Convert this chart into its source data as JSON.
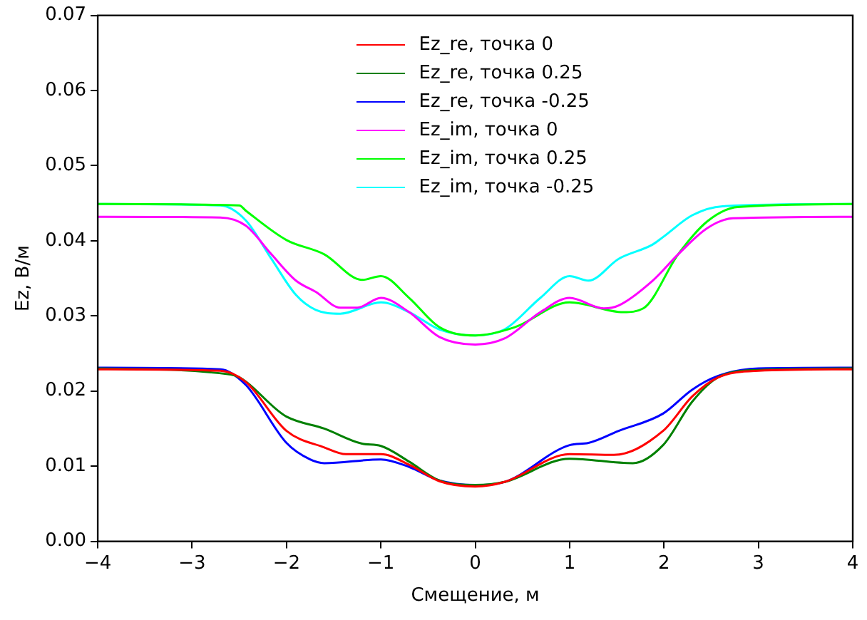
{
  "chart_data": {
    "type": "line",
    "xlabel": "Смещение, м",
    "ylabel": "Ez, В/м",
    "xlim": [
      -4,
      4
    ],
    "xticks": [
      {
        "value": -4,
        "label": "−4"
      },
      {
        "value": -3,
        "label": "−3"
      },
      {
        "value": -2,
        "label": "−2"
      },
      {
        "value": -1,
        "label": "−1"
      },
      0,
      1,
      2,
      3,
      4
    ],
    "ylim": [
      0,
      0.07
    ],
    "yticks": [
      {
        "value": 0,
        "label": "0.00"
      },
      {
        "value": 0.01,
        "label": "0.01"
      },
      {
        "value": 0.02,
        "label": "0.02"
      },
      {
        "value": 0.03,
        "label": "0.03"
      },
      {
        "value": 0.04,
        "label": "0.04"
      },
      {
        "value": 0.05,
        "label": "0.05"
      },
      {
        "value": 0.06,
        "label": "0.06"
      },
      {
        "value": 0.07,
        "label": "0.07"
      }
    ],
    "grid": false,
    "legend": "top",
    "marker": "none",
    "line_style": "solid",
    "series": [
      {
        "name": "Ez_re, точка 0",
        "color": "#ff0000",
        "x": [
          -4,
          -2.7,
          -2.43,
          -2,
          -1.6,
          -1.37,
          -1,
          -0.7,
          -0.38,
          0,
          0.31,
          1,
          1.47,
          1.99,
          2.3,
          2.57,
          3,
          4
        ],
        "values": [
          0.0229,
          0.0227,
          0.0212,
          0.0147,
          0.0125,
          0.0116,
          0.0116,
          0.0102,
          0.008,
          0.0073,
          0.0079,
          0.0116,
          0.0115,
          0.0147,
          0.0193,
          0.0218,
          0.0227,
          0.0229
        ]
      },
      {
        "name": "Ez_re, точка 0.25",
        "color": "#008000",
        "x": [
          -4,
          -2.59,
          -2,
          -1.6,
          -1.2,
          -1,
          -0.7,
          -0.38,
          0,
          0.31,
          1,
          1.67,
          1.99,
          2.3,
          2.57,
          3,
          4
        ],
        "values": [
          0.023,
          0.0222,
          0.0166,
          0.015,
          0.013,
          0.0127,
          0.0106,
          0.0081,
          0.0075,
          0.0079,
          0.011,
          0.0104,
          0.0128,
          0.0186,
          0.0218,
          0.0228,
          0.023
        ]
      },
      {
        "name": "Ez_re, точка -0.25",
        "color": "#0000ff",
        "x": [
          -4,
          -2.7,
          -2.43,
          -2,
          -1.75,
          -1.6,
          -1,
          -0.7,
          -0.38,
          0,
          0.31,
          1,
          1.2,
          1.52,
          1.99,
          2.3,
          2.57,
          3,
          4
        ],
        "values": [
          0.0231,
          0.0229,
          0.0208,
          0.0131,
          0.0109,
          0.0104,
          0.0109,
          0.0099,
          0.0081,
          0.0075,
          0.0079,
          0.0128,
          0.0131,
          0.0147,
          0.017,
          0.0202,
          0.022,
          0.023,
          0.0231
        ]
      },
      {
        "name": "Ez_im, точка 0",
        "color": "#ff00ff",
        "x": [
          -4,
          -2.7,
          -2.43,
          -2.16,
          -1.9,
          -1.69,
          -1.43,
          -1.25,
          -1,
          -0.7,
          -0.38,
          0,
          0.31,
          0.69,
          1,
          1.36,
          1.52,
          1.88,
          2.15,
          2.46,
          2.73,
          4
        ],
        "values": [
          0.0432,
          0.0431,
          0.042,
          0.0382,
          0.0347,
          0.0332,
          0.0311,
          0.0311,
          0.0324,
          0.0305,
          0.0272,
          0.0262,
          0.027,
          0.0305,
          0.0324,
          0.031,
          0.0314,
          0.0347,
          0.0382,
          0.0417,
          0.043,
          0.0432
        ]
      },
      {
        "name": "Ez_im, точка 0.25",
        "color": "#00ff00",
        "x": [
          -4,
          -2.5,
          -2.43,
          -2,
          -1.6,
          -1.2,
          -1,
          -0.7,
          -0.38,
          0,
          0.42,
          1,
          1.57,
          1.78,
          2.15,
          2.46,
          2.78,
          4
        ],
        "values": [
          0.0449,
          0.0447,
          0.044,
          0.0401,
          0.0382,
          0.0348,
          0.0353,
          0.0324,
          0.0285,
          0.0274,
          0.0285,
          0.0318,
          0.0305,
          0.031,
          0.0382,
          0.0426,
          0.0445,
          0.0449
        ]
      },
      {
        "name": "Ez_im, точка -0.25",
        "color": "#00ffff",
        "x": [
          -4,
          -2.7,
          -2.43,
          -2.16,
          -1.9,
          -1.69,
          -1.43,
          -1,
          -0.7,
          -0.38,
          0,
          0.31,
          0.69,
          1,
          1.2,
          1.52,
          1.88,
          1.99,
          2.3,
          2.62,
          4
        ],
        "values": [
          0.0449,
          0.0447,
          0.0427,
          0.0376,
          0.0328,
          0.0308,
          0.0303,
          0.0318,
          0.0305,
          0.0282,
          0.0274,
          0.0282,
          0.0324,
          0.0353,
          0.0347,
          0.0376,
          0.0395,
          0.0405,
          0.0434,
          0.0446,
          0.0449
        ]
      }
    ]
  }
}
